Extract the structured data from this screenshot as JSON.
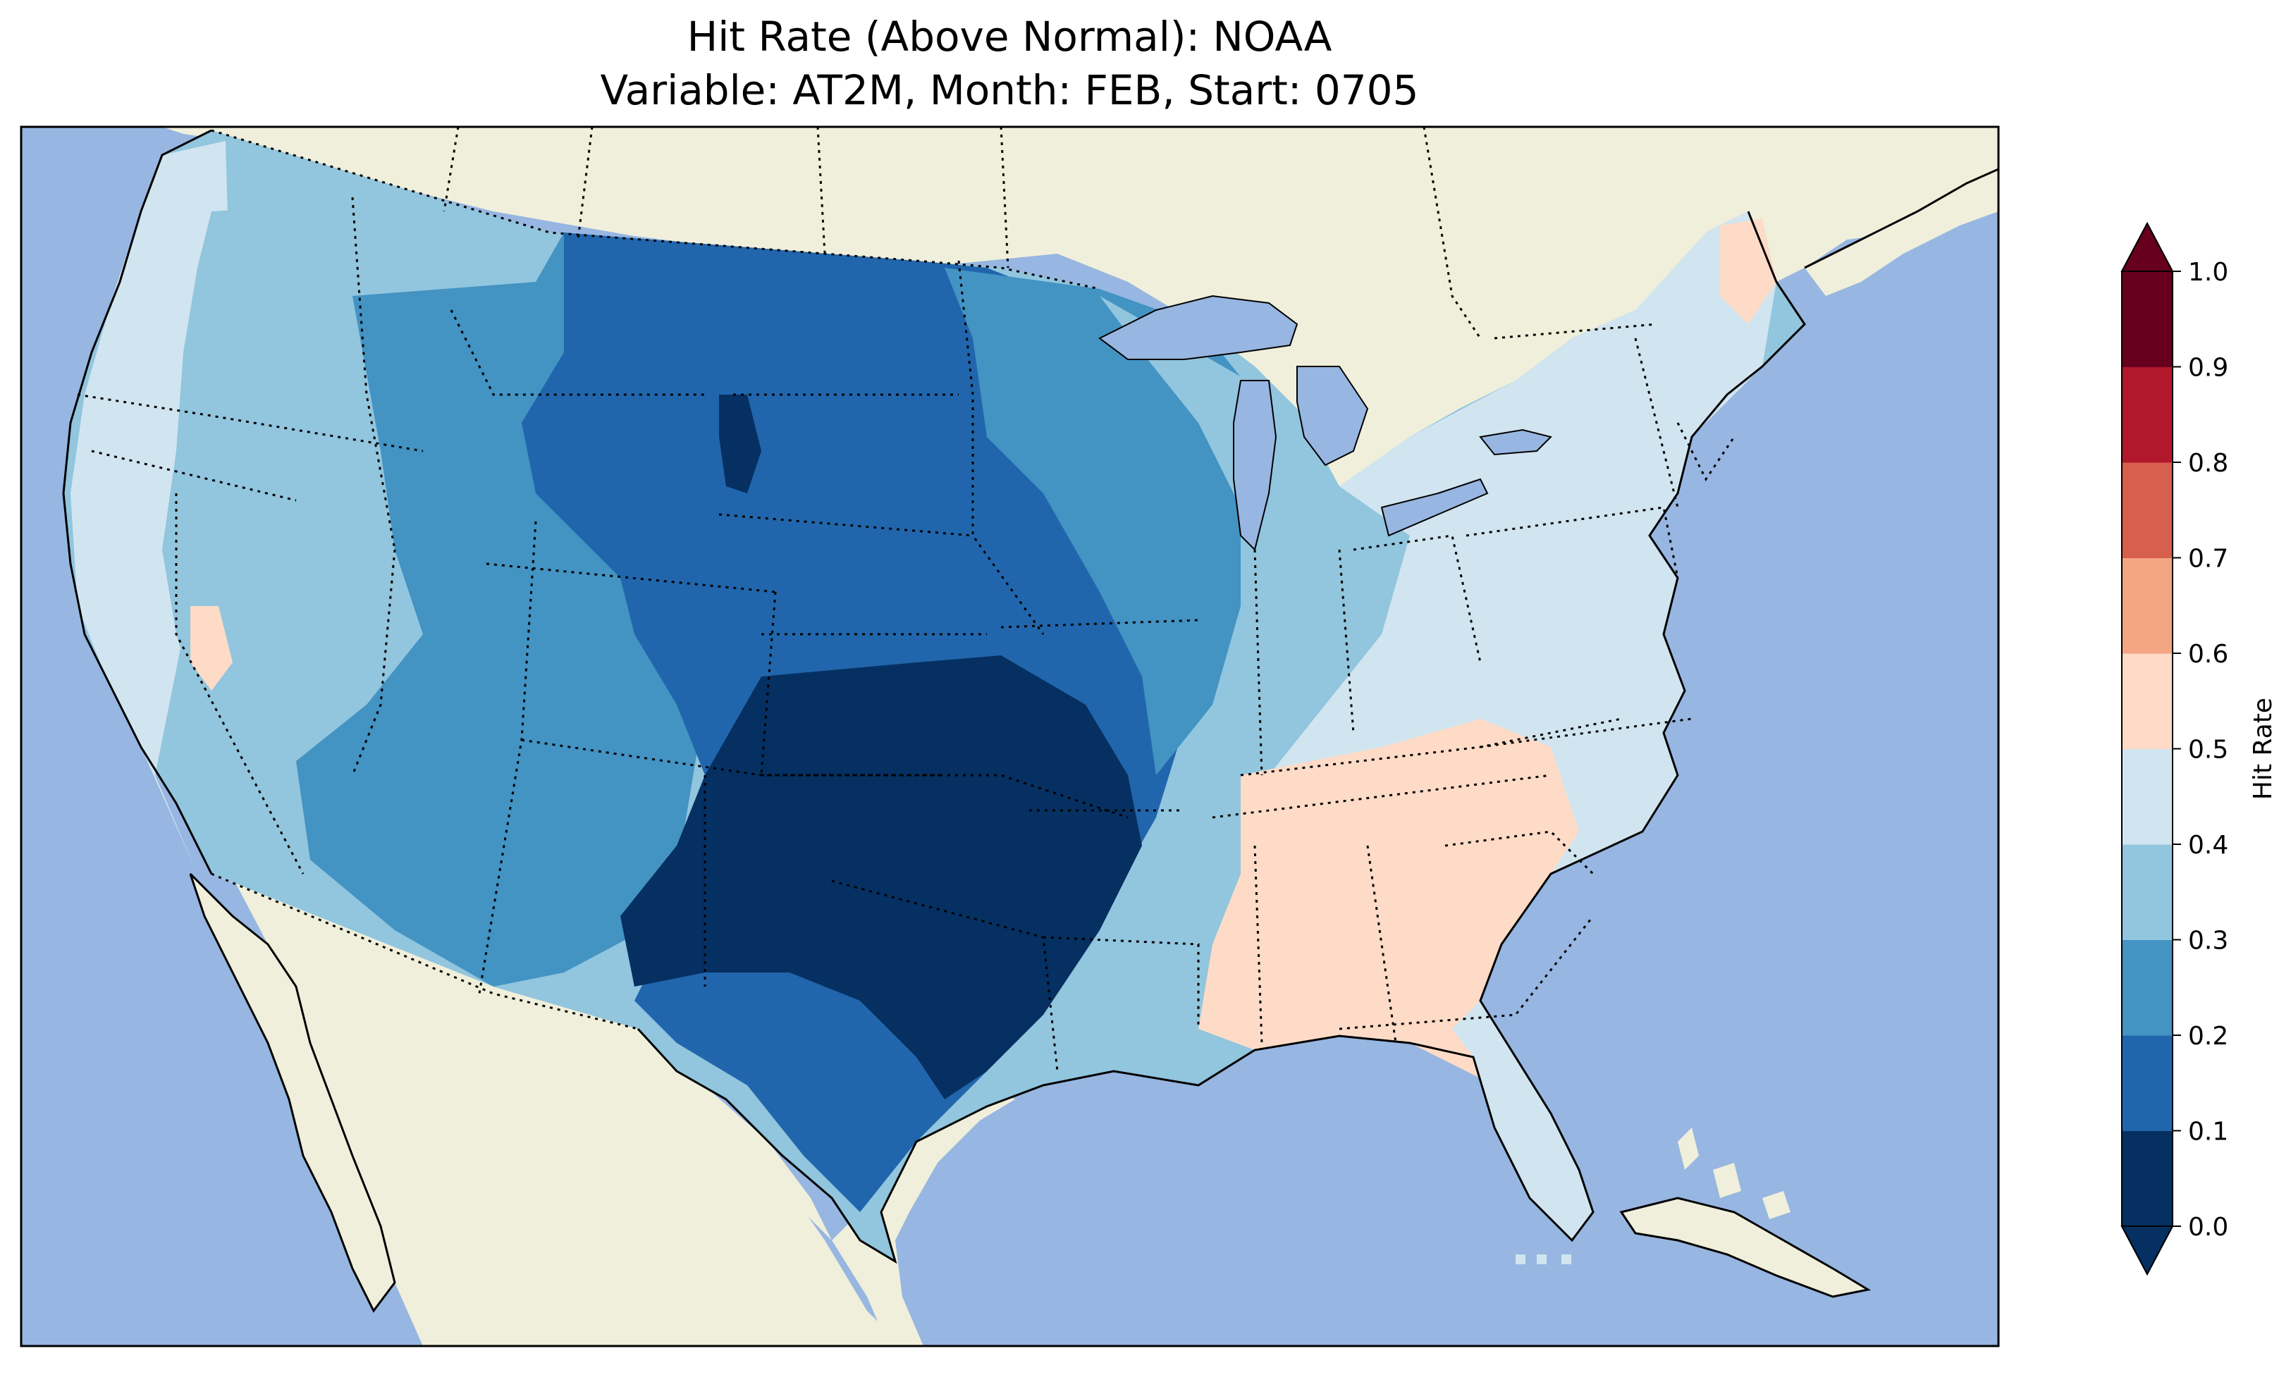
{
  "figure": {
    "title_line1": "Hit Rate (Above Normal): NOAA",
    "title_line2": "Variable: AT2M, Month: FEB, Start: 0705"
  },
  "map": {
    "ocean_color": "#97b6e1",
    "land_color": "#efefdb",
    "border_color": "#000000"
  },
  "colorbar": {
    "label": "Hit Rate",
    "ticks": [
      "0.0",
      "0.1",
      "0.2",
      "0.3",
      "0.4",
      "0.5",
      "0.6",
      "0.7",
      "0.8",
      "0.9",
      "1.0"
    ],
    "colors": [
      "#053061",
      "#2166ac",
      "#4393c3",
      "#92c5de",
      "#d1e5f0",
      "#fddbc7",
      "#f4a582",
      "#d6604d",
      "#b2182b",
      "#67001f"
    ],
    "under_color": "#053061",
    "over_color": "#67001f"
  }
}
